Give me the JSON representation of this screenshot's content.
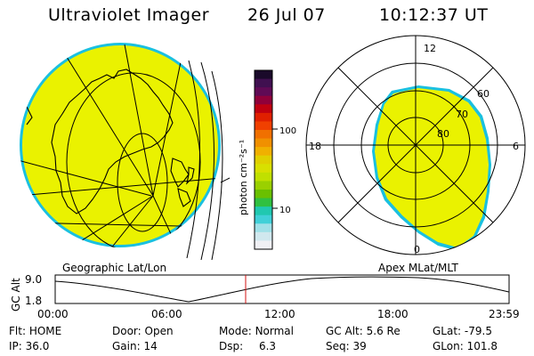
{
  "header": {
    "instrument": "Ultraviolet Imager",
    "date": "26 Jul 07",
    "time": "10:12:37 UT"
  },
  "colorbar": {
    "unit": "photon cm⁻²s⁻¹",
    "ticks": [
      "100",
      "10"
    ],
    "colors": [
      "#1a0a2a",
      "#401050",
      "#600a55",
      "#90003a",
      "#c00010",
      "#e02000",
      "#f04000",
      "#f07000",
      "#f09000",
      "#f0b000",
      "#e0d000",
      "#d8e000",
      "#c0e000",
      "#9ad000",
      "#6ac000",
      "#30c040",
      "#20c8b0",
      "#40d0d8",
      "#a0e0e8",
      "#d0e8ee",
      "#f0f0f4"
    ]
  },
  "geographic": {
    "label": "Geographic Lat/Lon",
    "fill_color": "#eaf200",
    "edge_color": "#1ac0e0"
  },
  "polar": {
    "label": "Apex MLat/MLT",
    "hours": [
      "12",
      "18",
      "6",
      "0"
    ],
    "lat_rings": [
      "60",
      "70",
      "80"
    ],
    "fill_color": "#eaf200",
    "edge_color": "#1ac0e0"
  },
  "altitude_plot": {
    "axis_label": "GC Alt",
    "y_ticks": [
      "9.0",
      "1.8"
    ],
    "x_ticks": [
      "00:00",
      "06:00",
      "12:00",
      "18:00",
      "23:59"
    ],
    "marker_color": "#d01010"
  },
  "status": {
    "row1": [
      {
        "label": "Flt:",
        "value": "HOME"
      },
      {
        "label": "Door:",
        "value": "Open"
      },
      {
        "label": "Mode:",
        "value": "Normal"
      },
      {
        "label": "GC Alt:",
        "value": "5.6 Re"
      },
      {
        "label": "GLat:",
        "value": "-79.5"
      }
    ],
    "row2": [
      {
        "label": "IP:",
        "value": "36.0"
      },
      {
        "label": "Gain:",
        "value": "14"
      },
      {
        "label": "Dsp:",
        "value": "6.3"
      },
      {
        "label": "Seq:",
        "value": "39"
      },
      {
        "label": "GLon:",
        "value": "101.8"
      }
    ]
  }
}
